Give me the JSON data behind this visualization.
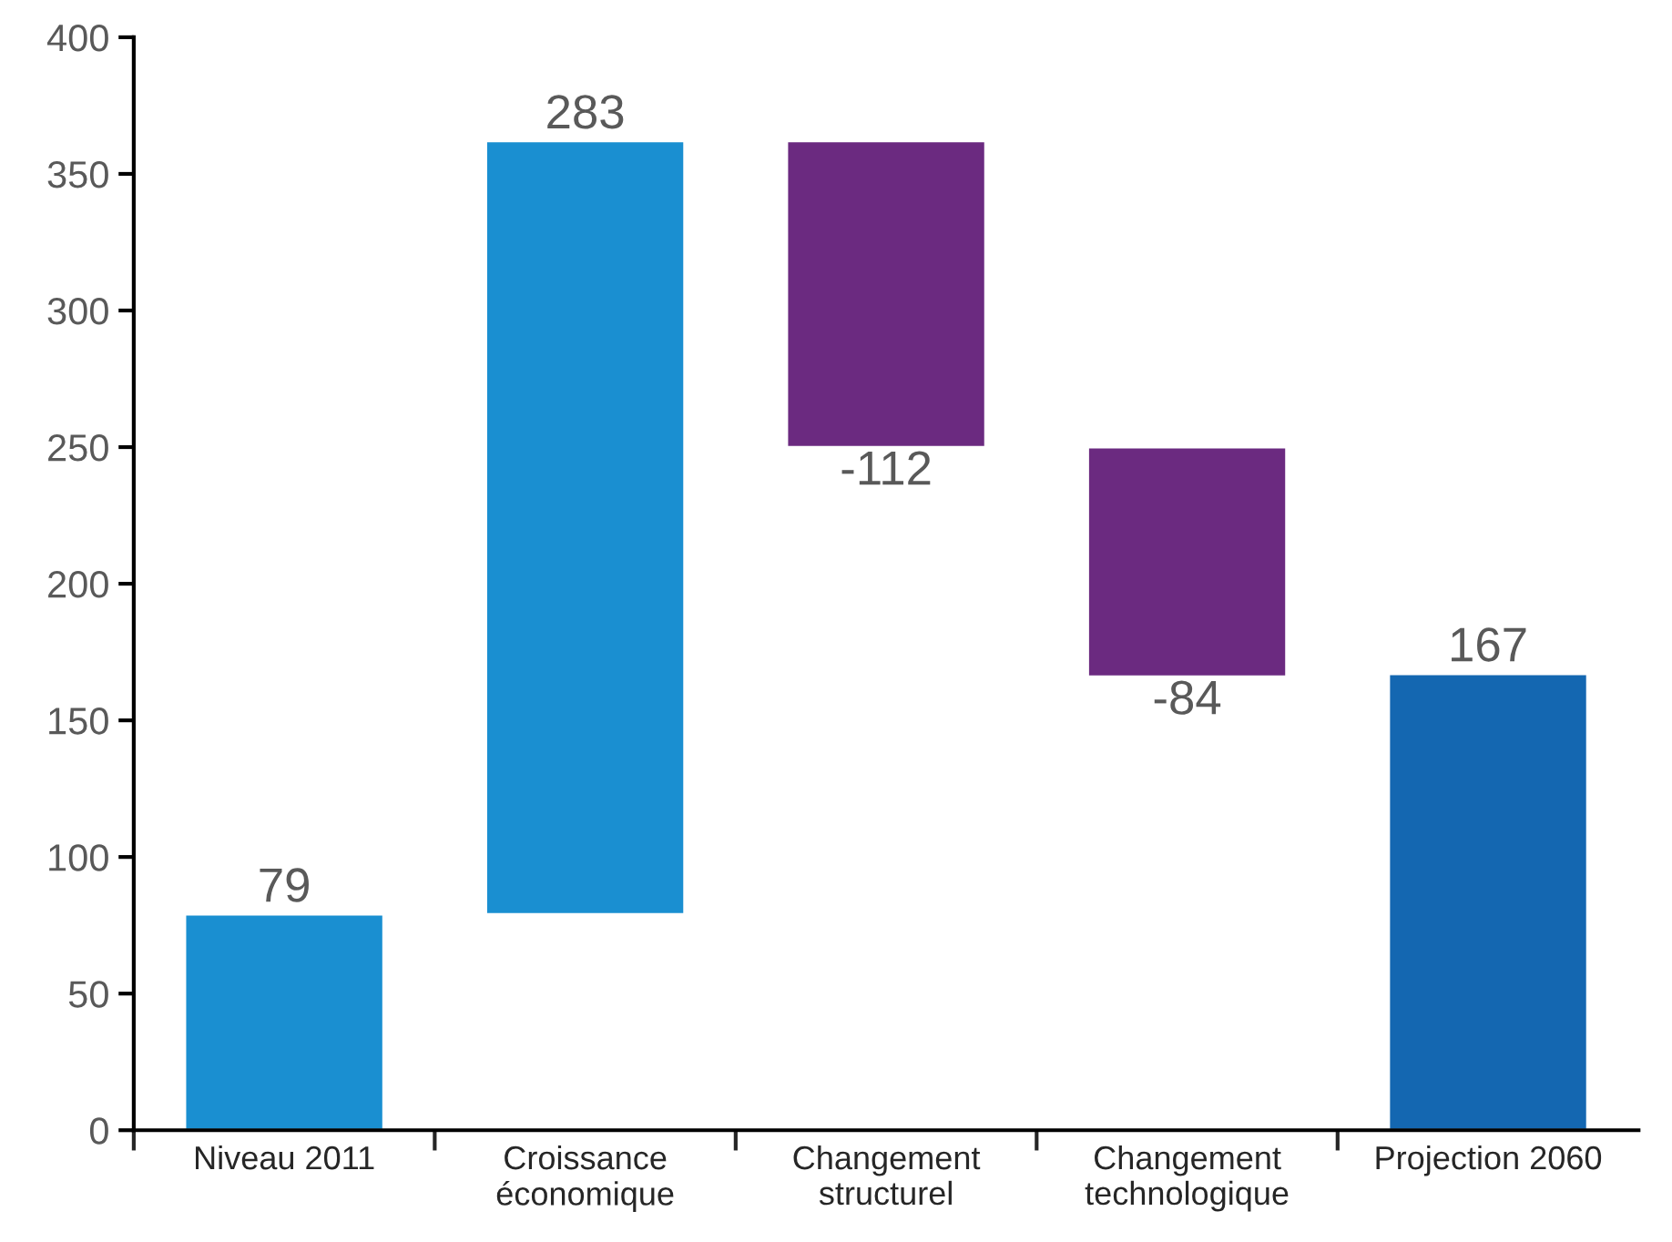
{
  "chart_data": {
    "type": "bar",
    "categories": [
      "Niveau 2011",
      "Croissance\néconomique",
      "Changement\nstructurel",
      "Changement\ntechnologique",
      "Projection 2060"
    ],
    "values": [
      79,
      283,
      -112,
      -84,
      167
    ],
    "base": [
      0,
      79,
      362,
      250,
      0
    ],
    "colors": [
      "#1a8fd1",
      "#1a8fd1",
      "#6b2a80",
      "#6b2a80",
      "#1467b1"
    ],
    "ylim": [
      0,
      400
    ],
    "yticks": [
      0,
      50,
      100,
      150,
      200,
      250,
      300,
      350,
      400
    ],
    "data_labels": true,
    "grid": false,
    "legend": false
  }
}
